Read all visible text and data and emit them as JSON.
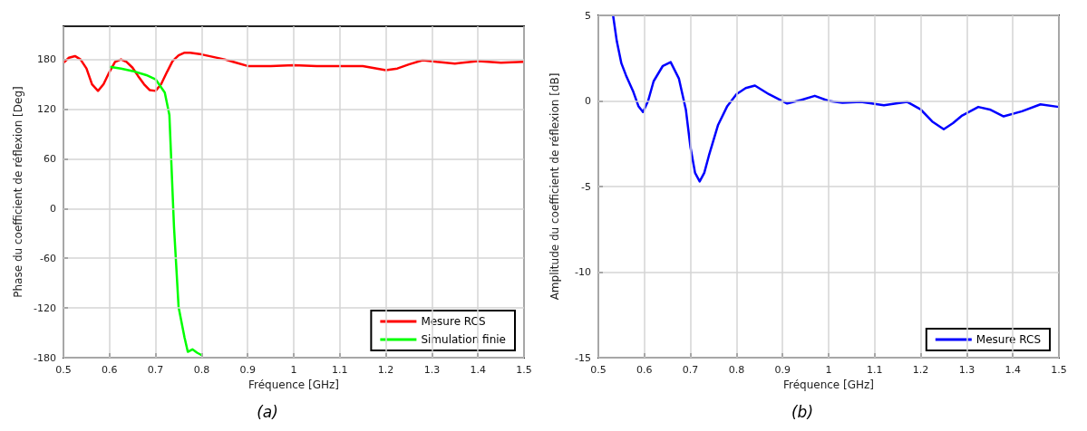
{
  "chart_data": [
    {
      "type": "line",
      "title": "(a)",
      "xlabel": "Fréquence [GHz]",
      "ylabel": "Phase du coefficient de réflexion [Deg]",
      "xlim": [
        0.5,
        1.5
      ],
      "xticks": [
        0.5,
        0.6,
        0.7,
        0.8,
        0.9,
        1,
        1.1,
        1.2,
        1.3,
        1.4,
        1.5
      ],
      "ylim": [
        -180,
        220
      ],
      "yticks": [
        -180,
        -120,
        -60,
        0,
        60,
        120,
        180
      ],
      "grid": true,
      "legend": "bottom right",
      "series": [
        {
          "name": "Mesure RCS",
          "color": "#ff0000",
          "x": [
            0.5,
            0.512,
            0.525,
            0.537,
            0.55,
            0.562,
            0.575,
            0.587,
            0.6,
            0.612,
            0.625,
            0.637,
            0.65,
            0.662,
            0.675,
            0.687,
            0.7,
            0.712,
            0.725,
            0.737,
            0.75,
            0.762,
            0.775,
            0.8,
            0.825,
            0.85,
            0.875,
            0.9,
            0.95,
            1,
            1.05,
            1.1,
            1.15,
            1.2,
            1.225,
            1.25,
            1.28,
            1.31,
            1.35,
            1.4,
            1.45,
            1.5
          ],
          "values": [
            176,
            182,
            184,
            180,
            169,
            150,
            142,
            150,
            165,
            177,
            180,
            177,
            170,
            160,
            150,
            143,
            142,
            150,
            165,
            178,
            185,
            188,
            188,
            186,
            183,
            180,
            176,
            172,
            172,
            173,
            172,
            172,
            172,
            167,
            169,
            174,
            179,
            177,
            175,
            178,
            176,
            177
          ]
        },
        {
          "name": "Simulation finie",
          "color": "#00ff00",
          "x": [
            0.6,
            0.625,
            0.65,
            0.68,
            0.7,
            0.72,
            0.73,
            0.74,
            0.75,
            0.763,
            0.77,
            0.78,
            0.79,
            0.8
          ],
          "values": [
            171,
            169,
            166,
            161,
            156,
            140,
            113,
            -22,
            -119,
            -156,
            -173,
            -170,
            -174,
            -177
          ]
        }
      ]
    },
    {
      "type": "line",
      "title": "(b)",
      "xlabel": "Fréquence [GHz]",
      "ylabel": "Amplitude du coefficient de réflexion [dB]",
      "xlim": [
        0.5,
        1.5
      ],
      "xticks": [
        0.5,
        0.6,
        0.7,
        0.8,
        0.9,
        1,
        1.1,
        1.2,
        1.3,
        1.4,
        1.5
      ],
      "ylim": [
        -15,
        5
      ],
      "yticks": [
        -15,
        -10,
        -5,
        0,
        5
      ],
      "grid": true,
      "legend": "bottom right",
      "series": [
        {
          "name": "Mesure RCS",
          "color": "#0000ff",
          "x": [
            0.532,
            0.54,
            0.55,
            0.56,
            0.575,
            0.587,
            0.597,
            0.608,
            0.62,
            0.64,
            0.657,
            0.675,
            0.69,
            0.7,
            0.71,
            0.72,
            0.73,
            0.74,
            0.76,
            0.78,
            0.8,
            0.82,
            0.84,
            0.87,
            0.91,
            0.94,
            0.97,
            1,
            1.03,
            1.07,
            1.12,
            1.17,
            1.2,
            1.225,
            1.25,
            1.27,
            1.29,
            1.325,
            1.35,
            1.38,
            1.42,
            1.46,
            1.5
          ],
          "values": [
            5,
            3.5,
            2.2,
            1.5,
            0.6,
            -0.3,
            -0.65,
            0,
            1.15,
            2.05,
            2.27,
            1.3,
            -0.5,
            -2.7,
            -4.2,
            -4.7,
            -4.2,
            -3.2,
            -1.4,
            -0.3,
            0.4,
            0.75,
            0.9,
            0.4,
            -0.15,
            0.05,
            0.3,
            0,
            -0.1,
            -0.05,
            -0.25,
            -0.05,
            -0.5,
            -1.2,
            -1.65,
            -1.3,
            -0.85,
            -0.35,
            -0.5,
            -0.9,
            -0.6,
            -0.2,
            -0.35
          ]
        }
      ]
    }
  ]
}
